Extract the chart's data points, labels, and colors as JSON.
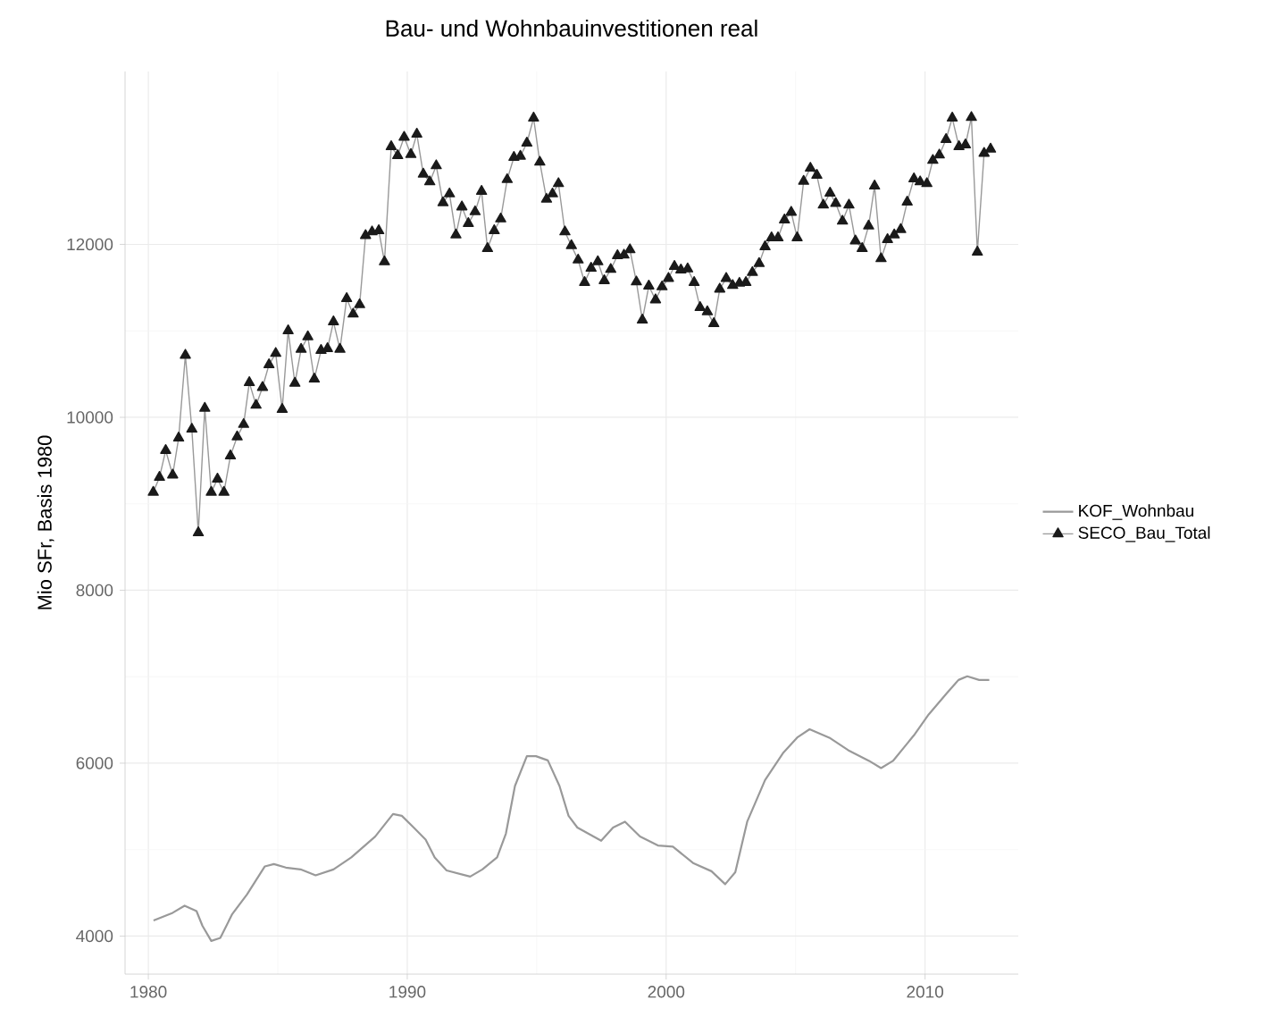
{
  "chart_data": {
    "type": "line",
    "title": "Bau- und Wohnbauinvestitionen real",
    "ylabel": "Mio SFr, Basis 1980",
    "xlim": [
      1979.1,
      2013.6
    ],
    "ylim": [
      3560,
      14000
    ],
    "xticks": [
      1980,
      1990,
      2000,
      2010
    ],
    "yticks": [
      4000,
      6000,
      8000,
      10000,
      12000
    ],
    "grid": true,
    "legend": "right",
    "series": [
      {
        "name": "KOF_Wohnbau",
        "color": "#999999",
        "marker": "none",
        "x": [
          1980.2,
          1980.94,
          1981.4,
          1981.86,
          1982.09,
          1982.43,
          1982.78,
          1983.24,
          1983.81,
          1984.5,
          1984.85,
          1985.31,
          1985.88,
          1986.46,
          1987.15,
          1987.84,
          1988.76,
          1989.45,
          1989.79,
          1990.25,
          1990.71,
          1991.06,
          1991.52,
          1992.43,
          1992.9,
          1993.47,
          1993.81,
          1994.16,
          1994.62,
          1994.97,
          1995.43,
          1995.88,
          1996.23,
          1996.57,
          1997.49,
          1997.95,
          1998.41,
          1998.99,
          1999.68,
          2000.26,
          2001.06,
          2001.75,
          2002.28,
          2002.67,
          2003.13,
          2003.82,
          2004.51,
          2005.08,
          2005.54,
          2006.34,
          2007.03,
          2007.84,
          2008.3,
          2008.76,
          2009.57,
          2010.14,
          2010.83,
          2011.29,
          2011.63,
          2012.09,
          2012.48
        ],
        "values": [
          4180,
          4269,
          4351,
          4289,
          4118,
          3944,
          3979,
          4254,
          4482,
          4806,
          4833,
          4792,
          4771,
          4703,
          4771,
          4910,
          5151,
          5412,
          5391,
          5255,
          5116,
          4910,
          4759,
          4688,
          4771,
          4910,
          5185,
          5736,
          6081,
          6081,
          6032,
          5736,
          5391,
          5255,
          5102,
          5255,
          5323,
          5151,
          5048,
          5034,
          4841,
          4750,
          4600,
          4738,
          5323,
          5805,
          6115,
          6301,
          6392,
          6288,
          6150,
          6026,
          5943,
          6026,
          6322,
          6563,
          6805,
          6962,
          7004,
          6962,
          6962
        ]
      },
      {
        "name": "SECO_Bau_Total",
        "color": "#1a1a1a",
        "marker": "triangle",
        "x": [
          1980.19,
          1980.43,
          1980.67,
          1980.94,
          1981.17,
          1981.43,
          1981.68,
          1981.93,
          1982.18,
          1982.43,
          1982.67,
          1982.92,
          1983.17,
          1983.43,
          1983.68,
          1983.9,
          1984.16,
          1984.41,
          1984.66,
          1984.92,
          1985.17,
          1985.4,
          1985.66,
          1985.9,
          1986.16,
          1986.41,
          1986.67,
          1986.92,
          1987.15,
          1987.4,
          1987.66,
          1987.91,
          1988.16,
          1988.39,
          1988.64,
          1988.9,
          1989.12,
          1989.38,
          1989.63,
          1989.88,
          1990.14,
          1990.37,
          1990.62,
          1990.87,
          1991.12,
          1991.38,
          1991.63,
          1991.88,
          1992.11,
          1992.36,
          1992.62,
          1992.87,
          1993.1,
          1993.36,
          1993.61,
          1993.86,
          1994.12,
          1994.37,
          1994.62,
          1994.88,
          1995.12,
          1995.38,
          1995.61,
          1995.84,
          1996.09,
          1996.34,
          1996.6,
          1996.85,
          1997.1,
          1997.36,
          1997.61,
          1997.86,
          1998.12,
          1998.37,
          1998.6,
          1998.85,
          1999.08,
          1999.33,
          1999.59,
          1999.84,
          2000.09,
          2000.32,
          2000.57,
          2000.83,
          2001.08,
          2001.31,
          2001.59,
          2001.84,
          2002.07,
          2002.32,
          2002.57,
          2002.83,
          2003.08,
          2003.33,
          2003.59,
          2003.82,
          2004.07,
          2004.32,
          2004.57,
          2004.83,
          2005.06,
          2005.31,
          2005.57,
          2005.82,
          2006.07,
          2006.33,
          2006.55,
          2006.81,
          2007.06,
          2007.31,
          2007.57,
          2007.82,
          2008.05,
          2008.3,
          2008.55,
          2008.81,
          2009.06,
          2009.31,
          2009.57,
          2009.81,
          2010.07,
          2010.3,
          2010.55,
          2010.81,
          2011.05,
          2011.31,
          2011.56,
          2011.79,
          2012.02,
          2012.28,
          2012.53
        ],
        "values": [
          9133,
          9306,
          9617,
          9333,
          9761,
          10718,
          9864,
          8665,
          10105,
          9133,
          9286,
          9133,
          9554,
          9774,
          9918,
          10402,
          10140,
          10346,
          10609,
          10739,
          10092,
          11002,
          10394,
          10787,
          10932,
          10443,
          10774,
          10795,
          11105,
          10787,
          11374,
          11194,
          11303,
          12103,
          12145,
          12159,
          11799,
          13131,
          13027,
          13240,
          13040,
          13276,
          12813,
          12724,
          12910,
          12482,
          12585,
          12110,
          12434,
          12242,
          12378,
          12614,
          11952,
          12159,
          12295,
          12750,
          13007,
          13020,
          13172,
          13462,
          12951,
          12523,
          12585,
          12703,
          12145,
          11986,
          11820,
          11560,
          11725,
          11800,
          11581,
          11711,
          11870,
          11876,
          11938,
          11566,
          11126,
          11519,
          11359,
          11510,
          11607,
          11746,
          11705,
          11717,
          11560,
          11270,
          11221,
          11084,
          11483,
          11607,
          11525,
          11551,
          11560,
          11675,
          11779,
          11973,
          12077,
          12077,
          12283,
          12372,
          12077,
          12730,
          12882,
          12800,
          12455,
          12593,
          12475,
          12269,
          12455,
          12041,
          11952,
          12213,
          12676,
          11835,
          12056,
          12110,
          12172,
          12490,
          12759,
          12724,
          12703,
          12972,
          13034,
          13214,
          13462,
          13131,
          13152,
          13468,
          11911,
          13054,
          13102
        ]
      }
    ]
  }
}
